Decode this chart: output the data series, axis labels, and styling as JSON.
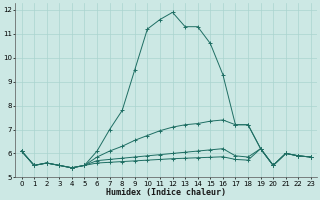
{
  "xlabel": "Humidex (Indice chaleur)",
  "bg_color": "#cce8e4",
  "line_color": "#1e6e63",
  "grid_color": "#aad4cf",
  "xlim": [
    -0.5,
    23.5
  ],
  "ylim": [
    5,
    12.3
  ],
  "yticks": [
    5,
    6,
    7,
    8,
    9,
    10,
    11,
    12
  ],
  "xticks": [
    0,
    1,
    2,
    3,
    4,
    5,
    6,
    7,
    8,
    9,
    10,
    11,
    12,
    13,
    14,
    15,
    16,
    17,
    18,
    19,
    20,
    21,
    22,
    23
  ],
  "lines": [
    [
      0,
      1,
      2,
      3,
      4,
      5,
      6,
      7,
      8,
      9,
      10,
      11,
      12,
      13,
      14,
      15,
      16,
      17,
      18,
      19,
      20,
      21,
      22,
      23
    ],
    [
      6.1,
      5.5,
      5.6,
      5.5,
      5.4,
      5.5,
      6.1,
      7.0,
      7.8,
      9.5,
      11.2,
      11.6,
      11.9,
      11.3,
      11.3,
      10.6,
      9.3,
      7.2,
      7.2,
      6.2,
      5.5,
      6.0,
      5.9,
      5.85
    ],
    [
      6.1,
      5.5,
      5.6,
      5.5,
      5.4,
      5.5,
      5.85,
      6.1,
      6.3,
      6.55,
      6.75,
      6.95,
      7.1,
      7.2,
      7.25,
      7.35,
      7.4,
      7.2,
      7.2,
      6.2,
      5.5,
      6.0,
      5.9,
      5.85
    ],
    [
      6.1,
      5.5,
      5.6,
      5.5,
      5.4,
      5.5,
      5.7,
      5.75,
      5.8,
      5.85,
      5.9,
      5.95,
      6.0,
      6.05,
      6.1,
      6.15,
      6.2,
      5.9,
      5.85,
      6.2,
      5.5,
      6.0,
      5.9,
      5.85
    ],
    [
      6.1,
      5.5,
      5.6,
      5.5,
      5.4,
      5.5,
      5.6,
      5.63,
      5.66,
      5.69,
      5.72,
      5.75,
      5.78,
      5.8,
      5.82,
      5.84,
      5.86,
      5.75,
      5.72,
      6.2,
      5.5,
      6.0,
      5.9,
      5.85
    ]
  ]
}
